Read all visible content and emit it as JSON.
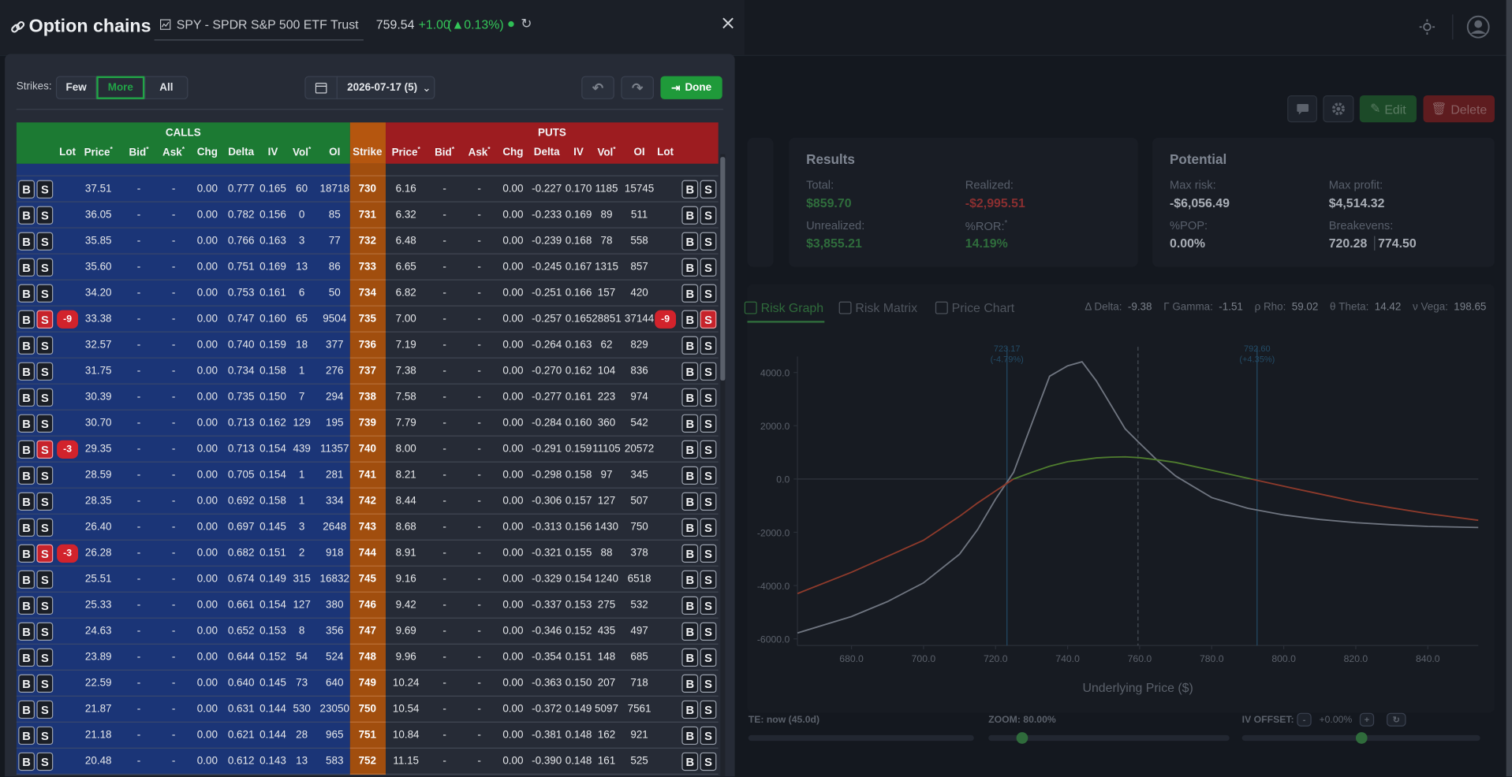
{
  "header": {
    "title": "Option chains",
    "symbol": "SPY - SPDR S&P 500 ETF Trust",
    "price": "759.54",
    "change": "+1.00",
    "change_pct": "(▲0.13%)"
  },
  "toolbar": {
    "strikes_label": "Strikes:",
    "strike_options": [
      "Few",
      "More",
      "All"
    ],
    "selected_index": 1,
    "expiration": "2026-07-17 (5)",
    "done": "Done"
  },
  "chain": {
    "calls_label": "CALLS",
    "puts_label": "PUTS",
    "strike_column": "Strike",
    "buy": "B",
    "sell": "S",
    "call_columns": [
      {
        "label": "Lot"
      },
      {
        "label": "Price",
        "marker": "*"
      },
      {
        "label": "Bid",
        "marker": "*"
      },
      {
        "label": "Ask",
        "marker": "*"
      },
      {
        "label": "Chg"
      },
      {
        "label": "Delta"
      },
      {
        "label": "IV"
      },
      {
        "label": "Vol",
        "marker": "*"
      },
      {
        "label": "OI"
      }
    ],
    "put_columns": [
      {
        "label": "Price",
        "marker": "*"
      },
      {
        "label": "Bid",
        "marker": "*"
      },
      {
        "label": "Ask",
        "marker": "*"
      },
      {
        "label": "Chg"
      },
      {
        "label": "Delta"
      },
      {
        "label": "IV"
      },
      {
        "label": "Vol",
        "marker": "*"
      },
      {
        "label": "OI"
      },
      {
        "label": "Lot"
      }
    ],
    "rows": [
      {
        "strike": "730",
        "call": [
          "37.51",
          "-",
          "-",
          "0.00",
          "0.777",
          "0.165",
          "60",
          "18718"
        ],
        "put": [
          "6.16",
          "-",
          "-",
          "0.00",
          "-0.227",
          "0.170",
          "1185",
          "15745"
        ]
      },
      {
        "strike": "731",
        "call": [
          "36.05",
          "-",
          "-",
          "0.00",
          "0.782",
          "0.156",
          "0",
          "85"
        ],
        "put": [
          "6.32",
          "-",
          "-",
          "0.00",
          "-0.233",
          "0.169",
          "89",
          "511"
        ]
      },
      {
        "strike": "732",
        "call": [
          "35.85",
          "-",
          "-",
          "0.00",
          "0.766",
          "0.163",
          "3",
          "77"
        ],
        "put": [
          "6.48",
          "-",
          "-",
          "0.00",
          "-0.239",
          "0.168",
          "78",
          "558"
        ]
      },
      {
        "strike": "733",
        "call": [
          "35.60",
          "-",
          "-",
          "0.00",
          "0.751",
          "0.169",
          "13",
          "86"
        ],
        "put": [
          "6.65",
          "-",
          "-",
          "0.00",
          "-0.245",
          "0.167",
          "1315",
          "857"
        ]
      },
      {
        "strike": "734",
        "call": [
          "34.20",
          "-",
          "-",
          "0.00",
          "0.753",
          "0.161",
          "6",
          "50"
        ],
        "put": [
          "6.82",
          "-",
          "-",
          "0.00",
          "-0.251",
          "0.166",
          "157",
          "420"
        ]
      },
      {
        "strike": "735",
        "call_lot": "-9",
        "call_sell_active": true,
        "put_lot": "-9",
        "put_sell_active": true,
        "call": [
          "33.38",
          "-",
          "-",
          "0.00",
          "0.747",
          "0.160",
          "65",
          "9504"
        ],
        "put": [
          "7.00",
          "-",
          "-",
          "0.00",
          "-0.257",
          "0.165",
          "28851",
          "37144"
        ]
      },
      {
        "strike": "736",
        "call": [
          "32.57",
          "-",
          "-",
          "0.00",
          "0.740",
          "0.159",
          "18",
          "377"
        ],
        "put": [
          "7.19",
          "-",
          "-",
          "0.00",
          "-0.264",
          "0.163",
          "62",
          "829"
        ]
      },
      {
        "strike": "737",
        "call": [
          "31.75",
          "-",
          "-",
          "0.00",
          "0.734",
          "0.158",
          "1",
          "276"
        ],
        "put": [
          "7.38",
          "-",
          "-",
          "0.00",
          "-0.270",
          "0.162",
          "104",
          "836"
        ]
      },
      {
        "strike": "738",
        "call": [
          "30.39",
          "-",
          "-",
          "0.00",
          "0.735",
          "0.150",
          "7",
          "294"
        ],
        "put": [
          "7.58",
          "-",
          "-",
          "0.00",
          "-0.277",
          "0.161",
          "223",
          "974"
        ]
      },
      {
        "strike": "739",
        "call": [
          "30.70",
          "-",
          "-",
          "0.00",
          "0.713",
          "0.162",
          "129",
          "195"
        ],
        "put": [
          "7.79",
          "-",
          "-",
          "0.00",
          "-0.284",
          "0.160",
          "360",
          "542"
        ]
      },
      {
        "strike": "740",
        "call_lot": "-3",
        "call_sell_active": true,
        "call": [
          "29.35",
          "-",
          "-",
          "0.00",
          "0.713",
          "0.154",
          "439",
          "11357"
        ],
        "put": [
          "8.00",
          "-",
          "-",
          "0.00",
          "-0.291",
          "0.159",
          "11105",
          "20572"
        ]
      },
      {
        "strike": "741",
        "call": [
          "28.59",
          "-",
          "-",
          "0.00",
          "0.705",
          "0.154",
          "1",
          "281"
        ],
        "put": [
          "8.21",
          "-",
          "-",
          "0.00",
          "-0.298",
          "0.158",
          "97",
          "345"
        ]
      },
      {
        "strike": "742",
        "call": [
          "28.35",
          "-",
          "-",
          "0.00",
          "0.692",
          "0.158",
          "1",
          "334"
        ],
        "put": [
          "8.44",
          "-",
          "-",
          "0.00",
          "-0.306",
          "0.157",
          "127",
          "507"
        ]
      },
      {
        "strike": "743",
        "call": [
          "26.40",
          "-",
          "-",
          "0.00",
          "0.697",
          "0.145",
          "3",
          "2648"
        ],
        "put": [
          "8.68",
          "-",
          "-",
          "0.00",
          "-0.313",
          "0.156",
          "1430",
          "750"
        ]
      },
      {
        "strike": "744",
        "call_lot": "-3",
        "call_sell_active": true,
        "call": [
          "26.28",
          "-",
          "-",
          "0.00",
          "0.682",
          "0.151",
          "2",
          "918"
        ],
        "put": [
          "8.91",
          "-",
          "-",
          "0.00",
          "-0.321",
          "0.155",
          "88",
          "378"
        ]
      },
      {
        "strike": "745",
        "call": [
          "25.51",
          "-",
          "-",
          "0.00",
          "0.674",
          "0.149",
          "315",
          "16832"
        ],
        "put": [
          "9.16",
          "-",
          "-",
          "0.00",
          "-0.329",
          "0.154",
          "1240",
          "6518"
        ]
      },
      {
        "strike": "746",
        "call": [
          "25.33",
          "-",
          "-",
          "0.00",
          "0.661",
          "0.154",
          "127",
          "380"
        ],
        "put": [
          "9.42",
          "-",
          "-",
          "0.00",
          "-0.337",
          "0.153",
          "275",
          "532"
        ]
      },
      {
        "strike": "747",
        "call": [
          "24.63",
          "-",
          "-",
          "0.00",
          "0.652",
          "0.153",
          "8",
          "356"
        ],
        "put": [
          "9.69",
          "-",
          "-",
          "0.00",
          "-0.346",
          "0.152",
          "435",
          "497"
        ]
      },
      {
        "strike": "748",
        "call": [
          "23.89",
          "-",
          "-",
          "0.00",
          "0.644",
          "0.152",
          "54",
          "524"
        ],
        "put": [
          "9.96",
          "-",
          "-",
          "0.00",
          "-0.354",
          "0.151",
          "148",
          "685"
        ]
      },
      {
        "strike": "749",
        "call": [
          "22.59",
          "-",
          "-",
          "0.00",
          "0.640",
          "0.145",
          "73",
          "640"
        ],
        "put": [
          "10.24",
          "-",
          "-",
          "0.00",
          "-0.363",
          "0.150",
          "207",
          "718"
        ]
      },
      {
        "strike": "750",
        "call": [
          "21.87",
          "-",
          "-",
          "0.00",
          "0.631",
          "0.144",
          "530",
          "23050"
        ],
        "put": [
          "10.54",
          "-",
          "-",
          "0.00",
          "-0.372",
          "0.149",
          "5097",
          "7561"
        ]
      },
      {
        "strike": "751",
        "call": [
          "21.18",
          "-",
          "-",
          "0.00",
          "0.621",
          "0.144",
          "28",
          "965"
        ],
        "put": [
          "10.84",
          "-",
          "-",
          "0.00",
          "-0.381",
          "0.148",
          "162",
          "921"
        ]
      },
      {
        "strike": "752",
        "call": [
          "20.48",
          "-",
          "-",
          "0.00",
          "0.612",
          "0.143",
          "13",
          "583"
        ],
        "put": [
          "11.15",
          "-",
          "-",
          "0.00",
          "-0.390",
          "0.148",
          "161",
          "525"
        ]
      }
    ]
  },
  "dashboard": {
    "buttons": {
      "edit": "Edit",
      "delete": "Delete"
    },
    "results": {
      "title": "Results",
      "items": [
        {
          "label": "Total:",
          "value": "$859.70",
          "tone": "positive"
        },
        {
          "label": "Realized:",
          "value": "-$2,995.51",
          "tone": "negative"
        },
        {
          "label": "Unrealized:",
          "value": "$3,855.21",
          "tone": "positive"
        },
        {
          "label": "%ROR:",
          "marker": "*",
          "value": "14.19%",
          "tone": "positive"
        }
      ]
    },
    "potential": {
      "title": "Potential",
      "items": [
        {
          "label": "Max risk:",
          "value": "-$6,056.49"
        },
        {
          "label": "Max profit:",
          "value": "$4,514.32"
        },
        {
          "label": "%POP:",
          "value": "0.00%"
        },
        {
          "label": "Breakevens:",
          "values": [
            "720.28",
            "774.50"
          ]
        }
      ]
    },
    "tabs": [
      "Risk Graph",
      "Risk Matrix",
      "Price Chart"
    ],
    "greeks": [
      {
        "label": "Δ Delta:",
        "value": "-9.38"
      },
      {
        "label": "Γ Gamma:",
        "value": "-1.51"
      },
      {
        "label": "ρ Rho:",
        "value": "59.02"
      },
      {
        "label": "θ Theta:",
        "value": "14.42"
      },
      {
        "label": "ν Vega:",
        "value": "198.65"
      }
    ],
    "controls": {
      "dte": "TE: now (45.0d)",
      "zoom": "ZOOM: 80.00%",
      "iv_offset": "IV OFFSET:",
      "iv_minus": "-",
      "iv_value": "+0.00%",
      "iv_plus": "+"
    }
  },
  "chart_data": {
    "type": "line",
    "x_label": "Underlying Price ($)",
    "x": [
      665,
      680,
      690,
      700,
      710,
      715,
      720,
      725,
      730,
      735,
      740,
      744,
      748,
      752,
      756,
      760,
      765,
      770,
      780,
      790,
      800,
      810,
      820,
      830,
      840,
      854
    ],
    "series": [
      {
        "color": "#6f7580",
        "values": [
          -5780,
          -5160,
          -4600,
          -3900,
          -2820,
          -1900,
          -760,
          250,
          2060,
          3860,
          4250,
          4400,
          3680,
          2780,
          1880,
          1340,
          690,
          110,
          -700,
          -1100,
          -1350,
          -1520,
          -1640,
          -1720,
          -1780,
          -1820
        ]
      },
      {
        "color": "#4f7d2e",
        "negative_color": "#8e3a2b",
        "values": [
          -4300,
          -3500,
          -2900,
          -2300,
          -1400,
          -900,
          -450,
          0,
          250,
          480,
          650,
          720,
          790,
          820,
          830,
          800,
          720,
          620,
          330,
          30,
          -270,
          -560,
          -850,
          -1080,
          -1300,
          -1550
        ]
      }
    ],
    "xlim": [
      665,
      854
    ],
    "ylim": [
      -6250,
      4600
    ],
    "xticks": [
      {
        "value": 680,
        "label": "680.0"
      },
      {
        "value": 700,
        "label": "700.0"
      },
      {
        "value": 720,
        "label": "720.0"
      },
      {
        "value": 740,
        "label": "740.0"
      },
      {
        "value": 760,
        "label": "760.0"
      },
      {
        "value": 780,
        "label": "780.0"
      },
      {
        "value": 800,
        "label": "800.0"
      },
      {
        "value": 820,
        "label": "820.0"
      },
      {
        "value": 840,
        "label": "840.0"
      }
    ],
    "yticks": [
      {
        "value": 4000,
        "label": "4000.0"
      },
      {
        "value": 2000,
        "label": "2000.0"
      },
      {
        "value": 0,
        "label": "0.0"
      },
      {
        "value": -2000,
        "label": "-2000.0"
      },
      {
        "value": -4000,
        "label": "-4000.0"
      },
      {
        "value": -6000,
        "label": "-6000.0"
      }
    ],
    "zero_line": true,
    "markers": [
      {
        "x": 723.17,
        "label": "723.17",
        "sublabel": "(-4.79%)"
      },
      {
        "x": 792.6,
        "label": "792.60",
        "sublabel": "(+4.35%)"
      },
      {
        "x": 759.54,
        "style": "dashed"
      }
    ]
  }
}
